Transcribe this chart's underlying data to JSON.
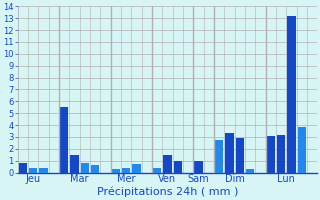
{
  "bars": [
    {
      "x": 0,
      "height": 0.8,
      "color": "#1448c8"
    },
    {
      "x": 1,
      "height": 0.4,
      "color": "#2288ee"
    },
    {
      "x": 2,
      "height": 0.4,
      "color": "#2288ee"
    },
    {
      "x": 4,
      "height": 5.5,
      "color": "#1448c8"
    },
    {
      "x": 5,
      "height": 1.5,
      "color": "#1448c8"
    },
    {
      "x": 6,
      "height": 0.8,
      "color": "#2288ee"
    },
    {
      "x": 7,
      "height": 0.6,
      "color": "#2288ee"
    },
    {
      "x": 9,
      "height": 0.3,
      "color": "#2288ee"
    },
    {
      "x": 10,
      "height": 0.4,
      "color": "#2288ee"
    },
    {
      "x": 11,
      "height": 0.7,
      "color": "#2288ee"
    },
    {
      "x": 13,
      "height": 0.4,
      "color": "#2288ee"
    },
    {
      "x": 14,
      "height": 1.5,
      "color": "#1448c8"
    },
    {
      "x": 15,
      "height": 1.0,
      "color": "#1448c8"
    },
    {
      "x": 17,
      "height": 1.0,
      "color": "#1448c8"
    },
    {
      "x": 19,
      "height": 2.7,
      "color": "#2288ee"
    },
    {
      "x": 20,
      "height": 3.3,
      "color": "#1448c8"
    },
    {
      "x": 21,
      "height": 2.9,
      "color": "#1448c8"
    },
    {
      "x": 22,
      "height": 0.3,
      "color": "#2288ee"
    },
    {
      "x": 24,
      "height": 3.1,
      "color": "#1448c8"
    },
    {
      "x": 25,
      "height": 3.2,
      "color": "#1448c8"
    },
    {
      "x": 26,
      "height": 13.2,
      "color": "#1448c8"
    },
    {
      "x": 27,
      "height": 3.8,
      "color": "#2288ee"
    }
  ],
  "day_labels": [
    {
      "label": "Jeu",
      "x": 1
    },
    {
      "label": "Mar",
      "x": 5.5
    },
    {
      "label": "Mer",
      "x": 10
    },
    {
      "label": "Ven",
      "x": 14
    },
    {
      "label": "Sam",
      "x": 17
    },
    {
      "label": "Dim",
      "x": 20.5
    },
    {
      "label": "Lun",
      "x": 25.5
    }
  ],
  "day_dividers_x": [
    3,
    8,
    12,
    16,
    18,
    23
  ],
  "xlabel": "Précipitations 24h ( mm )",
  "ylim": [
    0,
    14
  ],
  "yticks": [
    0,
    1,
    2,
    3,
    4,
    5,
    6,
    7,
    8,
    9,
    10,
    11,
    12,
    13,
    14
  ],
  "xlim": [
    -0.5,
    28.5
  ],
  "bar_width": 0.8,
  "background_color": "#d8f5f5",
  "grid_color": "#b0b0b0",
  "bar_color_dark": "#1448c8",
  "bar_color_light": "#2288ee",
  "axis_label_color": "#1448c8",
  "tick_color": "#1448c8",
  "xlabel_fontsize": 8,
  "ytick_fontsize": 6,
  "xtick_fontsize": 7
}
